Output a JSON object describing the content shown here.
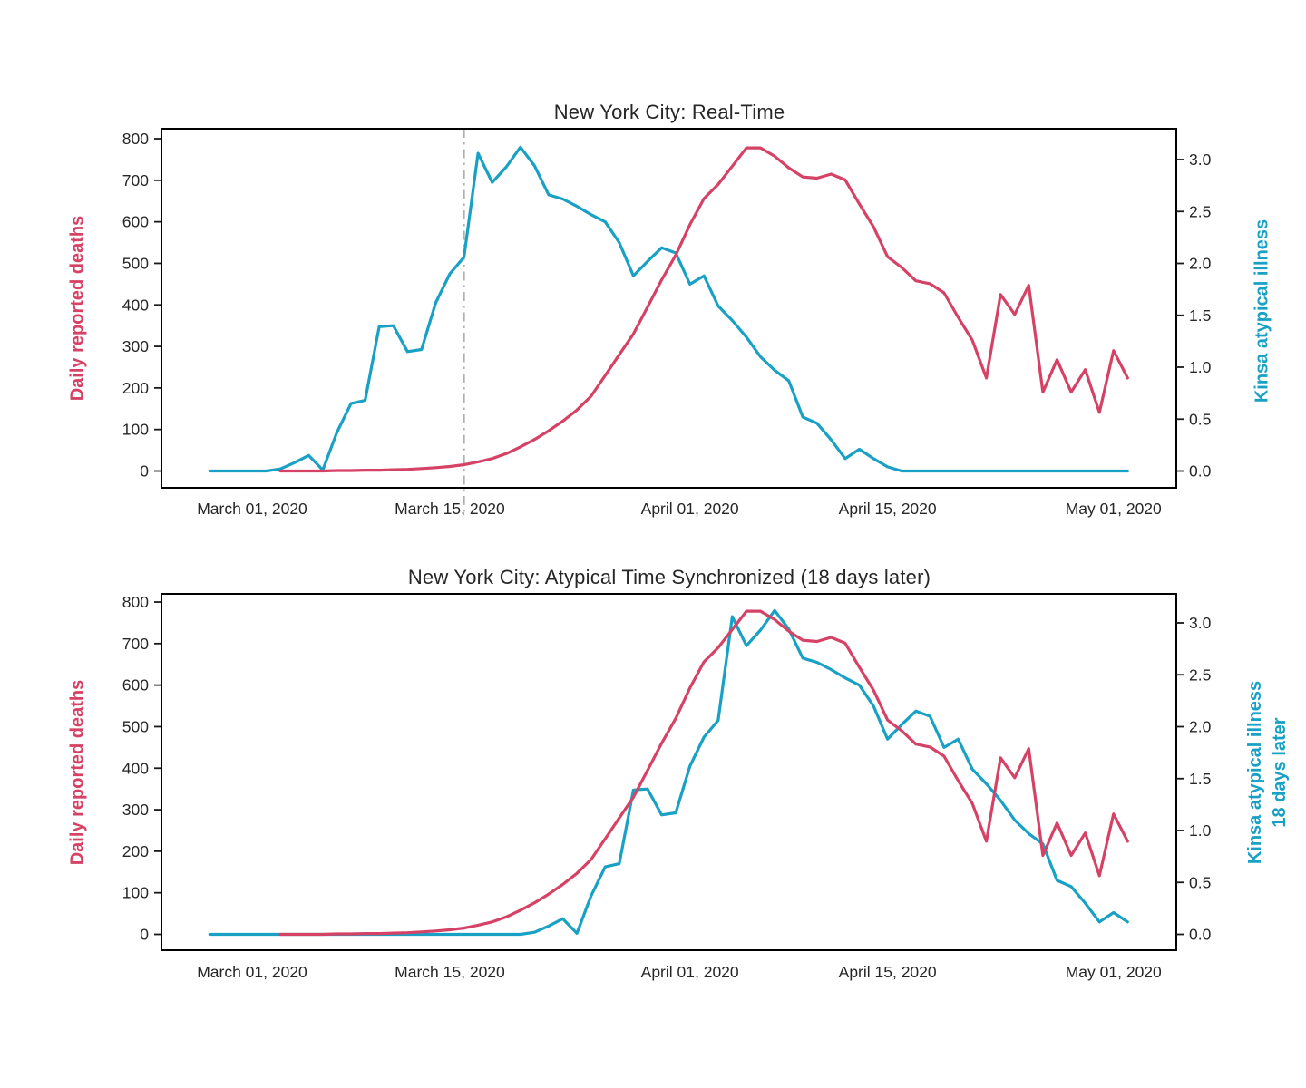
{
  "figure": {
    "background": "#ffffff",
    "accent_red": "#d64265",
    "accent_blue": "#18a1c5",
    "reference_line_color": "#b0b0b0",
    "text_color": "#262626"
  },
  "chart_data": [
    {
      "type": "line",
      "title": "New York City: Real-Time",
      "x_axis": {
        "tick_labels": [
          "March 01, 2020",
          "March 15, 2020",
          "April 01, 2020",
          "April 15, 2020",
          "May 01, 2020"
        ],
        "tick_day_offsets": [
          0,
          14,
          31,
          45,
          61
        ]
      },
      "left_axis": {
        "label": "Daily reported deaths",
        "color": "#d64265",
        "min": 0,
        "max": 800,
        "tick_labels": [
          "0",
          "100",
          "200",
          "300",
          "400",
          "500",
          "600",
          "700",
          "800"
        ]
      },
      "right_axis": {
        "label_lines": [
          "Kinsa atypical illness"
        ],
        "color": "#18a1c5",
        "min": 0.0,
        "max": 3.0,
        "tick_labels": [
          "0.0",
          "0.5",
          "1.0",
          "1.5",
          "2.0",
          "2.5",
          "3.0"
        ]
      },
      "vline": {
        "day_offset": 15,
        "color": "#b0b0b0",
        "style": "dash-dot"
      },
      "series": [
        {
          "name": "Kinsa atypical illness",
          "axis": "right",
          "color": "#18a1c5",
          "start_day_offset": -3,
          "values": [
            0,
            0,
            0,
            0,
            0,
            0.02,
            0.08,
            0.15,
            0.01,
            0.37,
            0.65,
            0.68,
            1.39,
            1.4,
            1.15,
            1.17,
            1.62,
            1.9,
            2.06,
            3.06,
            2.78,
            2.93,
            3.12,
            2.94,
            2.66,
            2.62,
            2.55,
            2.47,
            2.4,
            2.2,
            1.88,
            2.02,
            2.15,
            2.1,
            1.8,
            1.88,
            1.59,
            1.45,
            1.29,
            1.1,
            0.97,
            0.87,
            0.52,
            0.46,
            0.3,
            0.12,
            0.21,
            0.12,
            0.04,
            0,
            0,
            0,
            0,
            0,
            0,
            0,
            0,
            0,
            0,
            0,
            0,
            0,
            0,
            0,
            0,
            0
          ]
        },
        {
          "name": "Daily reported deaths",
          "axis": "left",
          "color": "#d64265",
          "start_day_offset": 2,
          "values": [
            0,
            0,
            0,
            0,
            1,
            1,
            2,
            2,
            3,
            4,
            6,
            8,
            11,
            15,
            22,
            30,
            42,
            58,
            76,
            97,
            120,
            147,
            180,
            230,
            280,
            330,
            395,
            460,
            520,
            593,
            656,
            690,
            734,
            778,
            778,
            758,
            730,
            708,
            705,
            715,
            701,
            643,
            588,
            516,
            490,
            458,
            451,
            429,
            370,
            315,
            224,
            425,
            377,
            447,
            190,
            268,
            190,
            244,
            141,
            290,
            224
          ]
        }
      ]
    },
    {
      "type": "line",
      "title": "New York City: Atypical Time Synchronized (18 days later)",
      "x_axis": {
        "tick_labels": [
          "March 01, 2020",
          "March 15, 2020",
          "April 01, 2020",
          "April 15, 2020",
          "May 01, 2020"
        ],
        "tick_day_offsets": [
          0,
          14,
          31,
          45,
          61
        ]
      },
      "left_axis": {
        "label": "Daily reported deaths",
        "color": "#d64265",
        "min": 0,
        "max": 800,
        "tick_labels": [
          "0",
          "100",
          "200",
          "300",
          "400",
          "500",
          "600",
          "700",
          "800"
        ]
      },
      "right_axis": {
        "label_lines": [
          "Kinsa atypical illness",
          "18 days later"
        ],
        "color": "#18a1c5",
        "min": 0.0,
        "max": 3.0,
        "tick_labels": [
          "0.0",
          "0.5",
          "1.0",
          "1.5",
          "2.0",
          "2.5",
          "3.0"
        ]
      },
      "shift_days": 18,
      "series": [
        {
          "name": "Kinsa atypical illness 18 days later",
          "axis": "right",
          "color": "#18a1c5",
          "start_day_offset": -3,
          "values": [
            0,
            0,
            0,
            0,
            0,
            0,
            0,
            0,
            0,
            0,
            0,
            0,
            0,
            0,
            0,
            0,
            0,
            0,
            0,
            0,
            0,
            0,
            0,
            0.02,
            0.08,
            0.15,
            0.01,
            0.37,
            0.65,
            0.68,
            1.39,
            1.4,
            1.15,
            1.17,
            1.62,
            1.9,
            2.06,
            3.06,
            2.78,
            2.93,
            3.12,
            2.94,
            2.66,
            2.62,
            2.55,
            2.47,
            2.4,
            2.2,
            1.88,
            2.02,
            2.15,
            2.1,
            1.8,
            1.88,
            1.59,
            1.45,
            1.29,
            1.1,
            0.97,
            0.87,
            0.52,
            0.46,
            0.3,
            0.12,
            0.21,
            0.12
          ]
        },
        {
          "name": "Daily reported deaths",
          "axis": "left",
          "color": "#d64265",
          "start_day_offset": 2,
          "values": [
            0,
            0,
            0,
            0,
            1,
            1,
            2,
            2,
            3,
            4,
            6,
            8,
            11,
            15,
            22,
            30,
            42,
            58,
            76,
            97,
            120,
            147,
            180,
            230,
            280,
            330,
            395,
            460,
            520,
            593,
            656,
            690,
            734,
            778,
            778,
            758,
            730,
            708,
            705,
            715,
            701,
            643,
            588,
            516,
            490,
            458,
            451,
            429,
            370,
            315,
            224,
            425,
            377,
            447,
            190,
            268,
            190,
            244,
            141,
            290,
            224
          ]
        }
      ]
    }
  ]
}
